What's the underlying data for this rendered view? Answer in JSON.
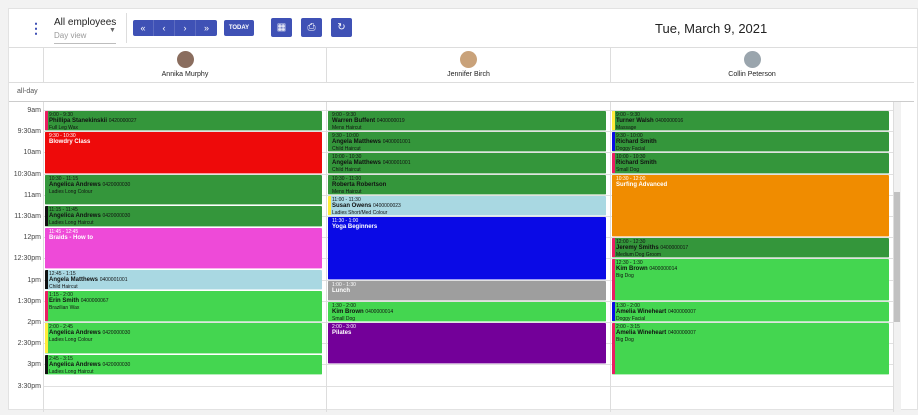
{
  "toolbar": {
    "menu_icon": "⋮",
    "employee_select": {
      "value": "All employees",
      "subtitle": "Day view",
      "caret": "▼"
    },
    "nav": {
      "first": "«",
      "prev": "‹",
      "next": "›",
      "last": "»"
    },
    "today_label": "TODAY",
    "calendar_icon": "▦",
    "print_icon": "⎙",
    "refresh_icon": "↻",
    "date_title": "Tue, March 9, 2021"
  },
  "resources": [
    {
      "name": "Annika Murphy",
      "avatar_color": "#8a6d5e"
    },
    {
      "name": "Jennifer Birch",
      "avatar_color": "#c9a27a"
    },
    {
      "name": "Collin Peterson",
      "avatar_color": "#9aa5ad"
    }
  ],
  "allday_label": "all-day",
  "time_labels": [
    "9am",
    "9:30am",
    "10am",
    "10:30am",
    "11am",
    "11:30am",
    "12pm",
    "12:30pm",
    "1pm",
    "1:30pm",
    "2pm",
    "2:30pm",
    "3pm",
    "3:30pm"
  ],
  "colors": {
    "primary": "#3f51b5"
  },
  "events": [
    {
      "col": 0,
      "start": "9:00",
      "end": "9:30",
      "time": "9:00 - 9:30",
      "name": "Phillipa Stanekinskii",
      "phone": "0420000027",
      "service": "Full Leg Wax",
      "bg": "#34963b",
      "bar": "#e91e63",
      "light": false
    },
    {
      "col": 0,
      "start": "9:30",
      "end": "10:30",
      "time": "9:30 - 10:30",
      "name": "Blowdry Class",
      "phone": "",
      "service": "",
      "bg": "#ee0a0a",
      "bar": "#ee0a0a",
      "light": true
    },
    {
      "col": 0,
      "start": "10:30",
      "end": "11:15",
      "time": "10:30 - 11:15",
      "name": "Angelica Andrews",
      "phone": "0420000030",
      "service": "Ladies Long Colour",
      "bg": "#34963b",
      "bar": "#34963b",
      "light": false
    },
    {
      "col": 0,
      "start": "11:15",
      "end": "11:45",
      "time": "11:15 - 11:45",
      "name": "Angelica Andrews",
      "phone": "0420000030",
      "service": "Ladies Long Haircut",
      "bg": "#34963b",
      "bar": "#111111",
      "light": false
    },
    {
      "col": 0,
      "start": "11:45",
      "end": "12:45",
      "time": "11:45 - 12:45",
      "name": "Braids - How to",
      "phone": "",
      "service": "",
      "bg": "#ee4ad8",
      "bar": "#ee4ad8",
      "light": true
    },
    {
      "col": 0,
      "start": "12:45",
      "end": "13:15",
      "time": "12:45 - 1:15",
      "name": "Angela Matthews",
      "phone": "0400001001",
      "service": "Child Haircut",
      "bg": "#a9d8e2",
      "bar": "#111111",
      "light": false
    },
    {
      "col": 0,
      "start": "13:15",
      "end": "14:00",
      "time": "1:15 - 2:00",
      "name": "Erin Smith",
      "phone": "0400000067",
      "service": "Brazilian Wax",
      "bg": "#44d650",
      "bar": "#e91e63",
      "light": false
    },
    {
      "col": 0,
      "start": "14:00",
      "end": "14:45",
      "time": "2:00 - 2:45",
      "name": "Angelica Andrews",
      "phone": "0420000030",
      "service": "Ladies Long Colour",
      "bg": "#44d650",
      "bar": "#ffeb3b",
      "light": false
    },
    {
      "col": 0,
      "start": "14:45",
      "end": "15:15",
      "time": "2:45 - 3:15",
      "name": "Angelica Andrews",
      "phone": "0420000030",
      "service": "Ladies Long Haircut",
      "bg": "#44d650",
      "bar": "#111111",
      "light": false
    },
    {
      "col": 1,
      "start": "9:00",
      "end": "9:30",
      "time": "9:00 - 9:30",
      "name": "Warren Buffent",
      "phone": "0400000019",
      "service": "Mens Haircut",
      "bg": "#34963b",
      "bar": "#34963b",
      "light": false
    },
    {
      "col": 1,
      "start": "9:30",
      "end": "10:00",
      "time": "9:30 - 10:00",
      "name": "Angela Matthews",
      "phone": "0400001001",
      "service": "Child Haircut",
      "bg": "#34963b",
      "bar": "#34963b",
      "light": false
    },
    {
      "col": 1,
      "start": "10:00",
      "end": "10:30",
      "time": "10:00 - 10:30",
      "name": "Angela Matthews",
      "phone": "0400001001",
      "service": "Child Haircut",
      "bg": "#34963b",
      "bar": "#34963b",
      "light": false
    },
    {
      "col": 1,
      "start": "10:30",
      "end": "11:00",
      "time": "10:30 - 11:00",
      "name": "Roberta Robertson",
      "phone": "",
      "service": "Mens Haircut",
      "bg": "#34963b",
      "bar": "#34963b",
      "light": false
    },
    {
      "col": 1,
      "start": "11:00",
      "end": "11:30",
      "time": "11:00 - 11:30",
      "name": "Susan Owens",
      "phone": "0400000023",
      "service": "Ladies Short/Med Colour",
      "bg": "#a9d8e2",
      "bar": "#ffeb3b",
      "light": false
    },
    {
      "col": 1,
      "start": "11:30",
      "end": "13:00",
      "time": "11:30 - 1:00",
      "name": "Yoga Beginners",
      "phone": "",
      "service": "",
      "bg": "#0a0ae6",
      "bar": "#0a0ae6",
      "light": true
    },
    {
      "col": 1,
      "start": "13:00",
      "end": "13:30",
      "time": "1:00 - 1:30",
      "name": "Lunch",
      "phone": "",
      "service": "",
      "bg": "#9e9e9e",
      "bar": "#9e9e9e",
      "light": true
    },
    {
      "col": 1,
      "start": "13:30",
      "end": "14:00",
      "time": "1:30 - 2:00",
      "name": "Kim Brown",
      "phone": "0400000014",
      "service": "Small Dog",
      "bg": "#44d650",
      "bar": "#44d650",
      "light": false
    },
    {
      "col": 1,
      "start": "14:00",
      "end": "15:00",
      "time": "2:00 - 3:00",
      "name": "Pilates",
      "phone": "",
      "service": "",
      "bg": "#730099",
      "bar": "#730099",
      "light": true
    },
    {
      "col": 2,
      "start": "9:00",
      "end": "9:30",
      "time": "9:00 - 9:30",
      "name": "Turner Walsh",
      "phone": "0400000016",
      "service": "Massage",
      "bg": "#34963b",
      "bar": "#ffeb3b",
      "light": false
    },
    {
      "col": 2,
      "start": "9:30",
      "end": "10:00",
      "time": "9:30 - 10:00",
      "name": "Richard Smith",
      "phone": "",
      "service": "Doggy Facial",
      "bg": "#34963b",
      "bar": "#0a0ae6",
      "light": false
    },
    {
      "col": 2,
      "start": "10:00",
      "end": "10:30",
      "time": "10:00 - 10:30",
      "name": "Richard Smith",
      "phone": "",
      "service": "Small Dog",
      "bg": "#34963b",
      "bar": "#e91e63",
      "light": false
    },
    {
      "col": 2,
      "start": "10:30",
      "end": "12:00",
      "time": "10:30 - 12:00",
      "name": "Surfing Advanced",
      "phone": "",
      "service": "",
      "bg": "#f08c00",
      "bar": "#f08c00",
      "light": true
    },
    {
      "col": 2,
      "start": "12:00",
      "end": "12:30",
      "time": "12:00 - 12:30",
      "name": "Jeremy Smiths",
      "phone": "0400000017",
      "service": "Medium Dog Groom",
      "bg": "#34963b",
      "bar": "#e91e63",
      "light": false
    },
    {
      "col": 2,
      "start": "12:30",
      "end": "13:30",
      "time": "12:30 - 1:30",
      "name": "Kim Brown",
      "phone": "0400000014",
      "service": "Big Dog",
      "bg": "#44d650",
      "bar": "#e91e63",
      "light": false
    },
    {
      "col": 2,
      "start": "13:30",
      "end": "14:00",
      "time": "1:30 - 2:00",
      "name": "Amelia Wineheart",
      "phone": "0400000007",
      "service": "Doggy Facial",
      "bg": "#44d650",
      "bar": "#0a0ae6",
      "light": false
    },
    {
      "col": 2,
      "start": "14:00",
      "end": "15:15",
      "time": "2:00 - 3:15",
      "name": "Amelia Wineheart",
      "phone": "0400000007",
      "service": "Big Dog",
      "bg": "#44d650",
      "bar": "#e91e63",
      "light": false
    }
  ]
}
